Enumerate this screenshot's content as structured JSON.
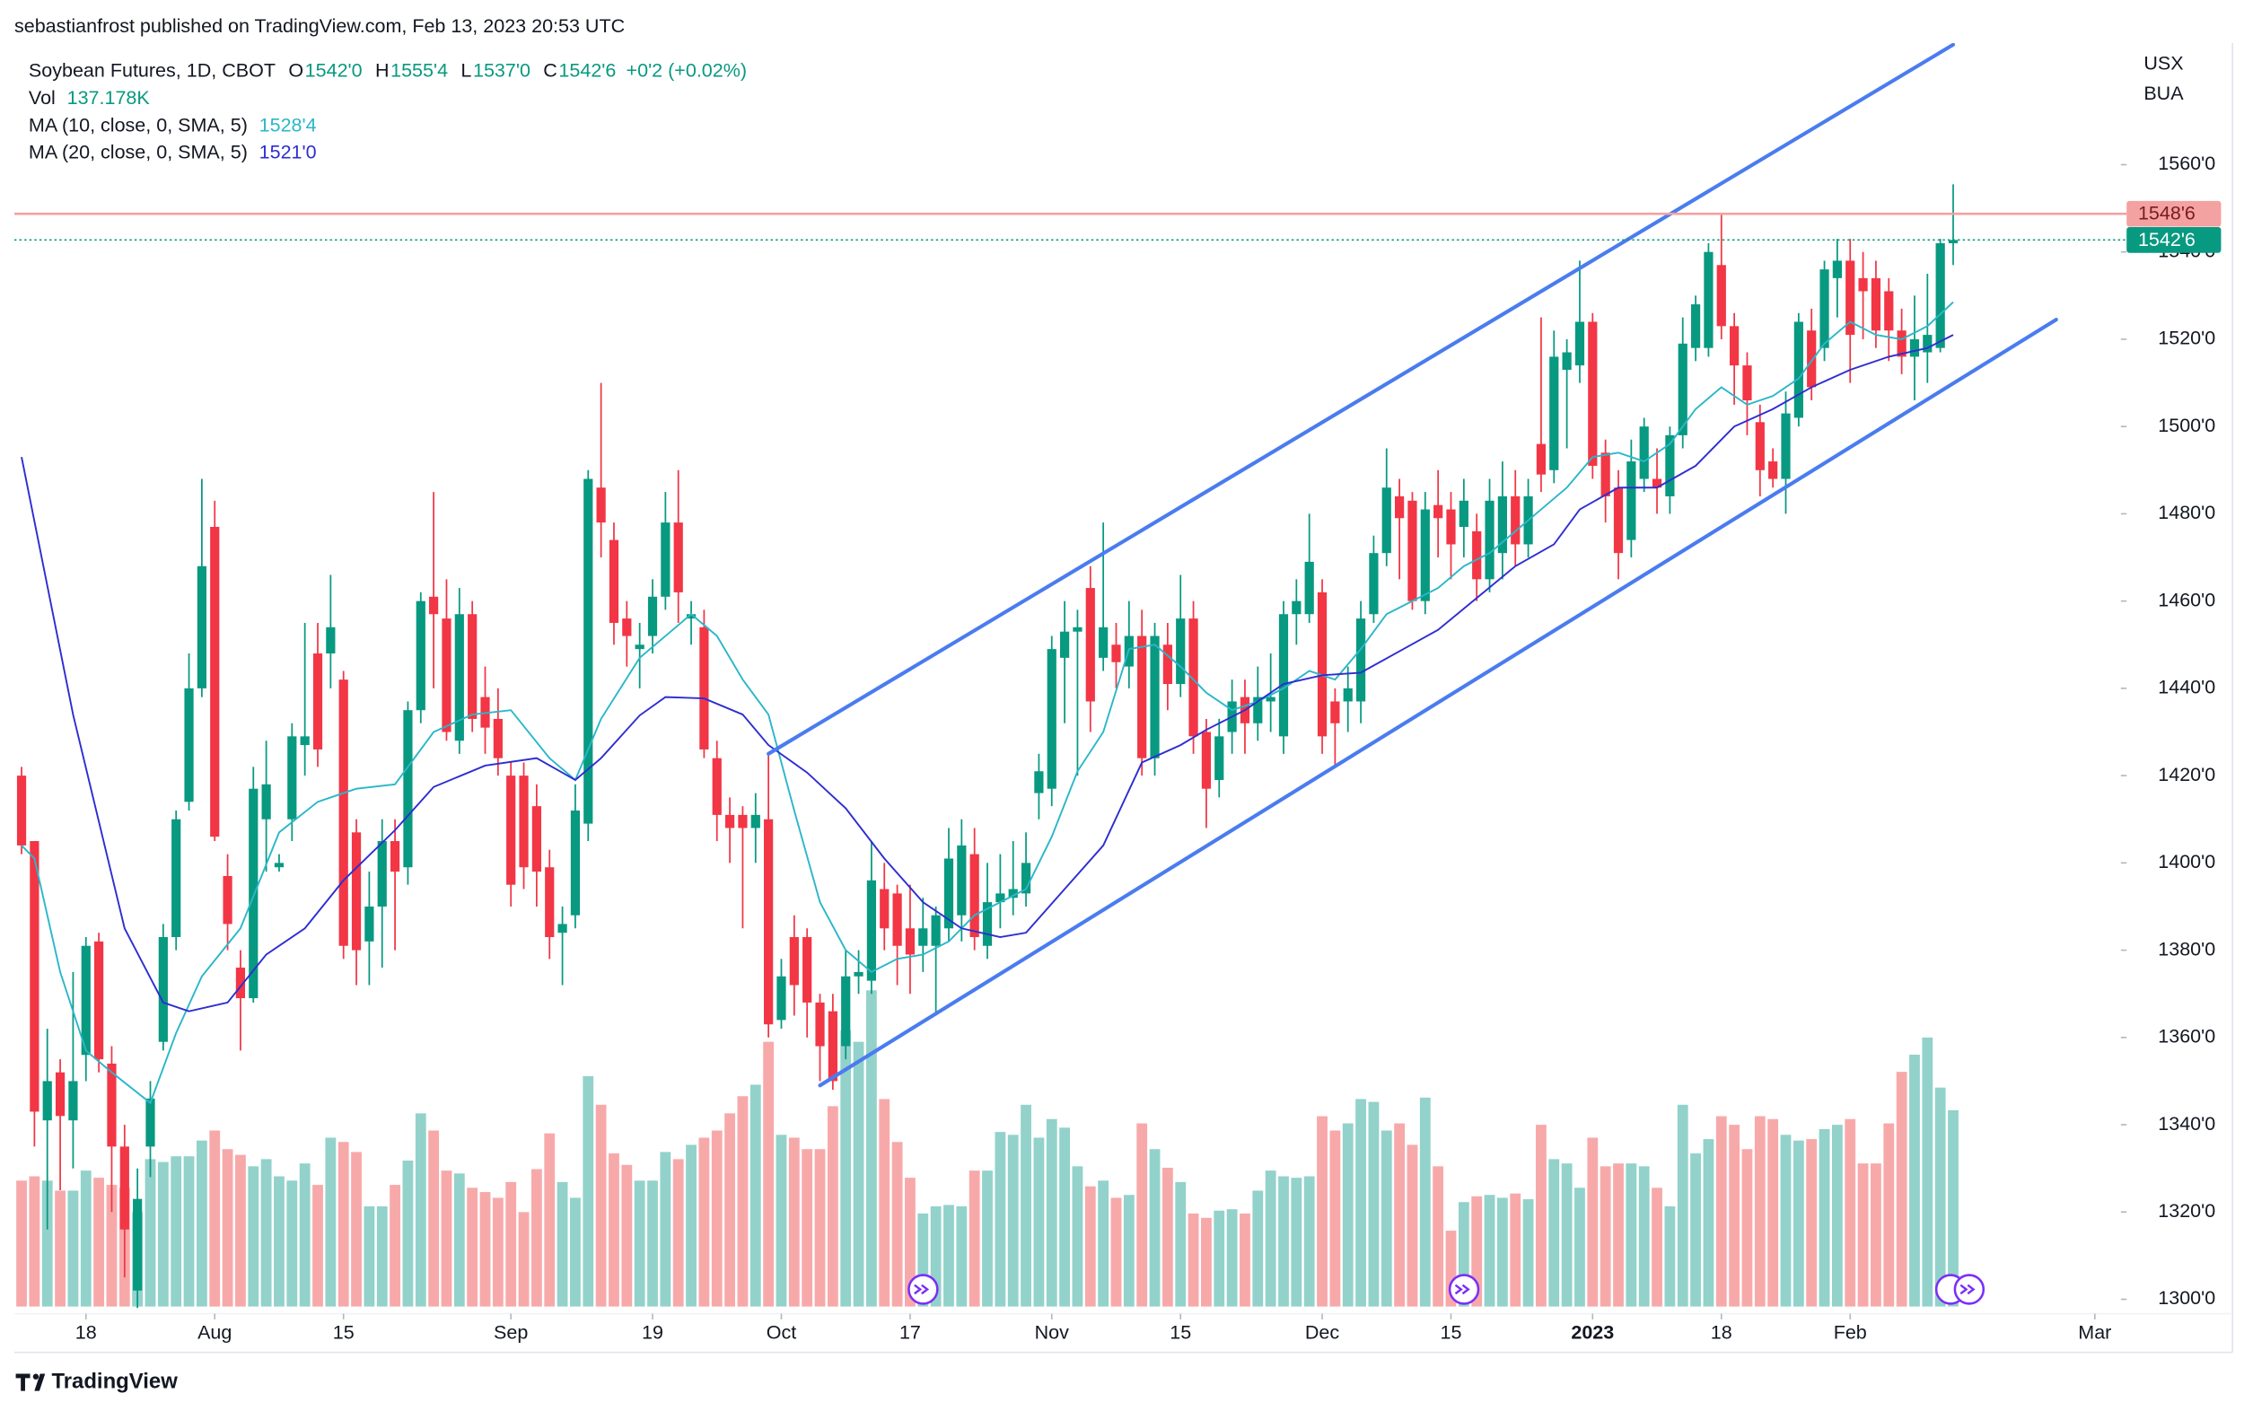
{
  "header": "sebastianfrost published on TradingView.com, Feb 13, 2023 20:53 UTC",
  "footer": "TradingView",
  "chart_data": {
    "type": "candlestick",
    "legend": {
      "symbol": "Soybean Futures, 1D, CBOT",
      "ohlc": [
        {
          "label": "O",
          "text": "1542'0"
        },
        {
          "label": "H",
          "text": "1555'4"
        },
        {
          "label": "L",
          "text": "1537'0"
        },
        {
          "label": "C",
          "text": "1542'6"
        }
      ],
      "change": "+0'2 (+0.02%)",
      "volume": {
        "label": "Vol",
        "text": "137.178K"
      },
      "color": "#089981"
    },
    "currency": "USX",
    "unit": "BUA",
    "colors": {
      "up": "#089981",
      "down": "#f23645",
      "vol_up": "#92d2cb",
      "vol_down": "#f7a9aa"
    },
    "xlim": [
      -0.56,
      162.8
    ],
    "xticks": [
      {
        "value": 5,
        "label": "18"
      },
      {
        "value": 15,
        "label": "Aug"
      },
      {
        "value": 25,
        "label": "15"
      },
      {
        "value": 38,
        "label": "Sep"
      },
      {
        "value": 49,
        "label": "19"
      },
      {
        "value": 59,
        "label": "Oct"
      },
      {
        "value": 69,
        "label": "17"
      },
      {
        "value": 80,
        "label": "Nov"
      },
      {
        "value": 90,
        "label": "15"
      },
      {
        "value": 101,
        "label": "Dec"
      },
      {
        "value": 111,
        "label": "15"
      },
      {
        "value": 122,
        "label": "2023"
      },
      {
        "value": 132,
        "label": "18"
      },
      {
        "value": 142,
        "label": "Feb"
      },
      {
        "value": 161,
        "label": "Mar"
      }
    ],
    "ylim": [
      1296.7,
      1587.9
    ],
    "yticks": [
      {
        "value": 1300,
        "label": "1300'0"
      },
      {
        "value": 1320,
        "label": "1320'0"
      },
      {
        "value": 1340,
        "label": "1340'0"
      },
      {
        "value": 1360,
        "label": "1360'0"
      },
      {
        "value": 1380,
        "label": "1380'0"
      },
      {
        "value": 1400,
        "label": "1400'0"
      },
      {
        "value": 1420,
        "label": "1420'0"
      },
      {
        "value": 1440,
        "label": "1440'0"
      },
      {
        "value": 1460,
        "label": "1460'0"
      },
      {
        "value": 1480,
        "label": "1480'0"
      },
      {
        "value": 1500,
        "label": "1500'0"
      },
      {
        "value": 1520,
        "label": "1520'0"
      },
      {
        "value": 1540,
        "label": "1540'0"
      },
      {
        "value": 1560,
        "label": "1560'0"
      }
    ],
    "grid": false,
    "vol_ylim": [
      0,
      888000
    ],
    "open": [
      1420,
      1405,
      1341,
      1352,
      1341,
      1356,
      1382,
      1354,
      1335,
      1302,
      1335,
      1359,
      1383,
      1414,
      1440,
      1477,
      1397,
      1376,
      1369,
      1410,
      1399,
      1410,
      1427,
      1448,
      1448,
      1442,
      1407,
      1382,
      1390,
      1405,
      1399,
      1435,
      1461,
      1456,
      1428,
      1457,
      1438,
      1433,
      1420,
      1420,
      1413,
      1399,
      1384,
      1388,
      1409,
      1486,
      1474,
      1456,
      1449,
      1452,
      1461,
      1478,
      1456,
      1454,
      1424,
      1411,
      1411,
      1408,
      1410,
      1364,
      1383,
      1383,
      1368,
      1366,
      1358,
      1374,
      1373,
      1394,
      1393,
      1385,
      1381,
      1381,
      1385,
      1388,
      1402,
      1381,
      1391,
      1392,
      1393,
      1416,
      1417,
      1447,
      1453,
      1463,
      1447,
      1450,
      1445,
      1452,
      1424,
      1450,
      1441,
      1456,
      1430,
      1419,
      1430,
      1438,
      1432,
      1437,
      1429,
      1457,
      1457,
      1462,
      1437,
      1437,
      1437,
      1457,
      1471,
      1484,
      1483,
      1460,
      1482,
      1481,
      1477,
      1476,
      1465,
      1471,
      1484,
      1473,
      1496,
      1490,
      1513,
      1514,
      1524,
      1494,
      1486,
      1474,
      1488,
      1488,
      1484,
      1498,
      1518,
      1518,
      1537,
      1523,
      1514,
      1501,
      1492,
      1488,
      1502,
      1522,
      1518,
      1534,
      1538,
      1534,
      1534,
      1531,
      1522,
      1516,
      1517,
      1518,
      1542
    ],
    "high": [
      1422,
      1405,
      1362,
      1355,
      1375,
      1383,
      1384,
      1358,
      1340,
      1330,
      1350,
      1386,
      1412,
      1448,
      1488,
      1483,
      1402,
      1380,
      1422,
      1428,
      1402,
      1432,
      1455,
      1455,
      1466,
      1444,
      1410,
      1398,
      1410,
      1410,
      1437,
      1462,
      1485,
      1465,
      1463,
      1460,
      1445,
      1440,
      1423,
      1423,
      1418,
      1403,
      1390,
      1418,
      1490,
      1510,
      1478,
      1460,
      1455,
      1465,
      1485,
      1490,
      1460,
      1458,
      1428,
      1415,
      1413,
      1416,
      1425,
      1378,
      1388,
      1385,
      1370,
      1370,
      1380,
      1380,
      1405,
      1400,
      1395,
      1395,
      1392,
      1390,
      1408,
      1410,
      1408,
      1400,
      1402,
      1405,
      1407,
      1425,
      1452,
      1460,
      1458,
      1468,
      1478,
      1455,
      1460,
      1458,
      1455,
      1455,
      1466,
      1460,
      1433,
      1433,
      1442,
      1442,
      1445,
      1448,
      1460,
      1465,
      1480,
      1465,
      1440,
      1445,
      1460,
      1475,
      1495,
      1488,
      1485,
      1485,
      1490,
      1485,
      1488,
      1480,
      1488,
      1492,
      1490,
      1488,
      1525,
      1522,
      1520,
      1538,
      1526,
      1497,
      1490,
      1497,
      1502,
      1495,
      1500,
      1525,
      1530,
      1542,
      1549,
      1526,
      1517,
      1505,
      1495,
      1508,
      1526,
      1527,
      1538,
      1543,
      1543,
      1540,
      1538,
      1534,
      1527,
      1530,
      1535,
      1543,
      1555.5
    ],
    "low": [
      1402,
      1335,
      1316,
      1325,
      1330,
      1350,
      1352,
      1320,
      1305,
      1298,
      1328,
      1357,
      1380,
      1412,
      1438,
      1405,
      1380,
      1357,
      1368,
      1398,
      1398,
      1405,
      1420,
      1422,
      1440,
      1378,
      1372,
      1372,
      1376,
      1380,
      1395,
      1432,
      1440,
      1428,
      1425,
      1430,
      1425,
      1420,
      1390,
      1394,
      1390,
      1378,
      1372,
      1385,
      1405,
      1470,
      1450,
      1445,
      1440,
      1448,
      1458,
      1455,
      1450,
      1424,
      1405,
      1400,
      1385,
      1400,
      1360,
      1362,
      1365,
      1360,
      1350,
      1348,
      1355,
      1370,
      1370,
      1380,
      1372,
      1370,
      1375,
      1365,
      1382,
      1382,
      1380,
      1378,
      1385,
      1388,
      1390,
      1410,
      1413,
      1432,
      1420,
      1430,
      1444,
      1440,
      1440,
      1420,
      1420,
      1435,
      1438,
      1425,
      1408,
      1415,
      1425,
      1425,
      1428,
      1430,
      1425,
      1450,
      1455,
      1425,
      1422,
      1430,
      1432,
      1455,
      1468,
      1465,
      1458,
      1457,
      1470,
      1465,
      1470,
      1460,
      1462,
      1465,
      1468,
      1470,
      1485,
      1487,
      1495,
      1510,
      1488,
      1478,
      1465,
      1470,
      1485,
      1480,
      1480,
      1495,
      1515,
      1516,
      1520,
      1505,
      1498,
      1484,
      1486,
      1480,
      1500,
      1506,
      1515,
      1525,
      1510,
      1520,
      1518,
      1515,
      1512,
      1506,
      1510,
      1517,
      1537
    ],
    "close": [
      1404,
      1343,
      1350,
      1342,
      1350,
      1381,
      1355,
      1335,
      1316,
      1323,
      1346,
      1383,
      1410,
      1440,
      1468,
      1406,
      1386,
      1369,
      1417,
      1418,
      1400,
      1429,
      1429,
      1426,
      1454,
      1381,
      1380,
      1390,
      1405,
      1398,
      1435,
      1460,
      1457,
      1430,
      1457,
      1433,
      1431,
      1424,
      1395,
      1399,
      1398,
      1383,
      1386,
      1412,
      1488,
      1478,
      1455,
      1452,
      1450,
      1461,
      1478,
      1462,
      1457,
      1426,
      1411,
      1408,
      1408,
      1411,
      1363,
      1374,
      1372,
      1368,
      1358,
      1350,
      1374,
      1375,
      1396,
      1385,
      1381,
      1379,
      1385,
      1388,
      1401,
      1404,
      1383,
      1391,
      1393,
      1394,
      1400,
      1421,
      1449,
      1453,
      1454,
      1437,
      1454,
      1446,
      1452,
      1424,
      1452,
      1441,
      1456,
      1429,
      1417,
      1429,
      1437,
      1432,
      1438,
      1438,
      1457,
      1460,
      1469,
      1429,
      1432,
      1440,
      1456,
      1471,
      1486,
      1479,
      1460,
      1481,
      1479,
      1473,
      1483,
      1465,
      1483,
      1484,
      1473,
      1484,
      1489,
      1516,
      1517,
      1524,
      1491,
      1484,
      1471,
      1492,
      1500,
      1486,
      1498,
      1519,
      1528,
      1540,
      1523,
      1514,
      1506,
      1490,
      1488,
      1503,
      1524,
      1509,
      1536,
      1538,
      1521,
      1531,
      1522,
      1522,
      1516,
      1520,
      1521,
      1542,
      1542.75
    ],
    "volume": [
      88000,
      91000,
      88000,
      81000,
      81000,
      95000,
      90000,
      85000,
      83000,
      66000,
      103000,
      101000,
      105000,
      105000,
      116000,
      123000,
      110000,
      106000,
      98000,
      103000,
      91000,
      88000,
      100000,
      85000,
      118000,
      115000,
      108000,
      70000,
      70000,
      85000,
      102000,
      135000,
      123000,
      95000,
      93000,
      83000,
      80000,
      76000,
      87000,
      66000,
      96000,
      121000,
      87000,
      76000,
      161000,
      141000,
      107000,
      99000,
      88000,
      88000,
      108000,
      103000,
      113000,
      118000,
      123000,
      135000,
      147000,
      155000,
      185000,
      120000,
      118000,
      110000,
      110000,
      140000,
      193000,
      185000,
      221000,
      145000,
      115000,
      90000,
      65000,
      70000,
      71000,
      70000,
      95000,
      95000,
      122000,
      120000,
      141000,
      118000,
      131000,
      125000,
      98000,
      84000,
      88000,
      76000,
      78000,
      128000,
      110000,
      97000,
      87000,
      65000,
      62000,
      67000,
      68000,
      65000,
      81000,
      95000,
      91000,
      90000,
      91000,
      133000,
      123000,
      128000,
      145000,
      143000,
      123000,
      128000,
      113000,
      146000,
      98000,
      53000,
      73000,
      77000,
      78000,
      76000,
      79000,
      75000,
      127000,
      103000,
      100000,
      83000,
      118000,
      98000,
      100000,
      100000,
      98000,
      83000,
      70000,
      141000,
      107000,
      117000,
      133000,
      127000,
      110000,
      133000,
      131000,
      120000,
      116000,
      117000,
      124000,
      127000,
      131000,
      100000,
      100000,
      128000,
      164000,
      176000,
      188000,
      153000,
      137178
    ],
    "ma": [
      {
        "name": "MA (10, close, 0, SMA, 5)",
        "value_label": "1528'4",
        "color": "#2ab7c9",
        "x": [
          0,
          1,
          3,
          5,
          7,
          10,
          12,
          14,
          17,
          20,
          23,
          26,
          29,
          32,
          35,
          38,
          41,
          43,
          45,
          48,
          50,
          52,
          54,
          56,
          58,
          60,
          62,
          64,
          66,
          68,
          70,
          72,
          74,
          76,
          78,
          80,
          82,
          84,
          86,
          88,
          90,
          92,
          94,
          96,
          98,
          100,
          102,
          104,
          106,
          108,
          110,
          112,
          114,
          116,
          118,
          120,
          122,
          124,
          126,
          128,
          130,
          132,
          134,
          136,
          138,
          140,
          142,
          144,
          146,
          148,
          150
        ],
        "values": [
          1404,
          1401,
          1375,
          1357,
          1352,
          1345,
          1361,
          1374,
          1385,
          1407,
          1414,
          1417,
          1418,
          1430,
          1434,
          1435,
          1424,
          1419,
          1433,
          1447,
          1452,
          1457,
          1452,
          1442,
          1434,
          1412,
          1391,
          1380,
          1375,
          1378,
          1379,
          1382,
          1388,
          1391,
          1394,
          1406,
          1421,
          1430,
          1449,
          1450,
          1445,
          1439,
          1435,
          1437,
          1440,
          1444,
          1442,
          1449,
          1457,
          1460,
          1463,
          1468,
          1471,
          1476,
          1481,
          1486,
          1493,
          1494,
          1492,
          1496,
          1504,
          1509,
          1505,
          1507,
          1511,
          1519,
          1524,
          1521,
          1520,
          1523,
          1528.5
        ]
      },
      {
        "name": "MA (20, close, 0, SMA, 5)",
        "value_label": "1521'0",
        "color": "#2d2dd2",
        "x": [
          0,
          4,
          8,
          11,
          13,
          16,
          19,
          22,
          25,
          29,
          32,
          36,
          40,
          43,
          45,
          48,
          50,
          53,
          56,
          58,
          61,
          64,
          67,
          70,
          73,
          76,
          78,
          81,
          84,
          87,
          90,
          92,
          95,
          98,
          101,
          104,
          107,
          110,
          113,
          116,
          119,
          121,
          124,
          127,
          130,
          133,
          136,
          139,
          142,
          145,
          148,
          150
        ],
        "values": [
          1493,
          1434,
          1385,
          1368,
          1366,
          1368,
          1379,
          1385,
          1396,
          1407.5,
          1417.4,
          1422.3,
          1424,
          1419,
          1424,
          1433.8,
          1438,
          1437.7,
          1434,
          1427,
          1420.7,
          1412.5,
          1401,
          1391,
          1385,
          1383,
          1384,
          1394,
          1404,
          1423,
          1427,
          1430.5,
          1435,
          1441,
          1443,
          1443.6,
          1448.5,
          1453.4,
          1460.7,
          1468,
          1473,
          1481,
          1486,
          1486,
          1491,
          1500,
          1504,
          1509,
          1513,
          1516,
          1518,
          1521
        ]
      }
    ],
    "trendlines": [
      {
        "color": "#4a7cf0",
        "x": [
          58,
          150
        ],
        "values": [
          1425,
          1587.5
        ]
      },
      {
        "color": "#4a7cf0",
        "x": [
          62,
          158
        ],
        "values": [
          1349,
          1524.5
        ]
      }
    ],
    "price_lines": [
      {
        "value": 1548.75,
        "label": "1548'6",
        "color": "#f4a1a1",
        "label_color": "#7a1c1c",
        "style": "solid"
      },
      {
        "value": 1542.75,
        "label": "1542'6",
        "color": "#089981",
        "label_color": "#ffffff",
        "style": "dotted"
      }
    ]
  }
}
